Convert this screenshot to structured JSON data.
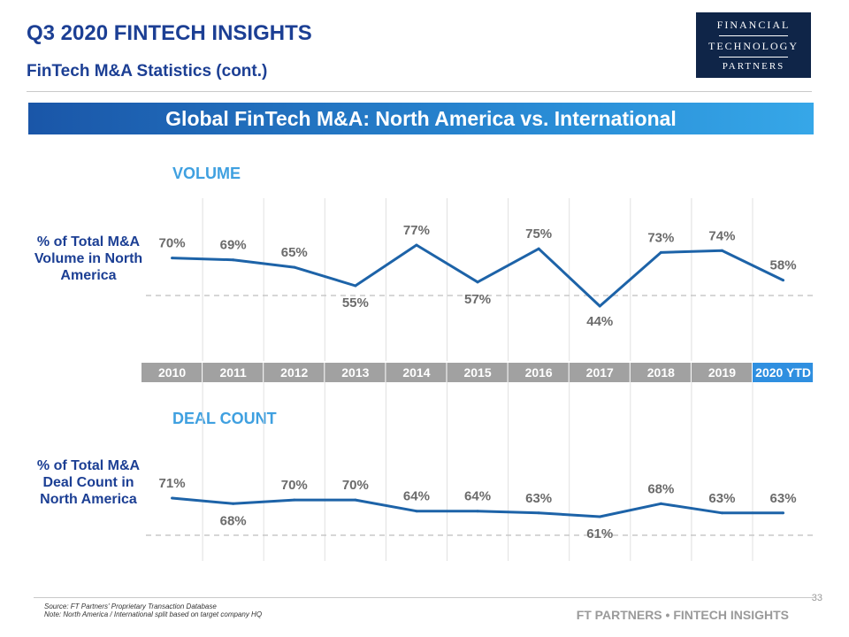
{
  "header": {
    "title": "Q3 2020 FINTECH INSIGHTS",
    "subtitle": "FinTech M&A Statistics (cont.)",
    "logo_lines": [
      "FINANCIAL",
      "TECHNOLOGY",
      "PARTNERS"
    ]
  },
  "banner": {
    "text": "Global FinTech M&A:  North America vs. International"
  },
  "chart_data": {
    "type": "line",
    "categories": [
      "2010",
      "2011",
      "2012",
      "2013",
      "2014",
      "2015",
      "2016",
      "2017",
      "2018",
      "2019",
      "2020 YTD"
    ],
    "series": [
      {
        "name": "% of Total M&A Volume in North America",
        "section": "VOLUME",
        "row_label": "% of Total M&A Volume in North America",
        "values": [
          70,
          69,
          65,
          55,
          77,
          57,
          75,
          44,
          73,
          74,
          58
        ],
        "labels": [
          "70%",
          "69%",
          "65%",
          "55%",
          "77%",
          "57%",
          "75%",
          "44%",
          "73%",
          "74%",
          "58%"
        ]
      },
      {
        "name": "% of Total M&A Deal Count in North America",
        "section": "DEAL COUNT",
        "row_label": "% of Total M&A Deal Count in North America",
        "values": [
          71,
          68,
          70,
          70,
          64,
          64,
          63,
          61,
          68,
          63,
          63
        ],
        "labels": [
          "71%",
          "68%",
          "70%",
          "70%",
          "64%",
          "64%",
          "63%",
          "61%",
          "68%",
          "63%",
          "63%"
        ]
      }
    ],
    "colors": {
      "line": "#1d63a8",
      "year_bar": "#a1a1a1",
      "year_highlight": "#2f8fe0",
      "section_label": "#3fa0e0",
      "row_label": "#1c3f94"
    }
  },
  "footer": {
    "source": "Source: FT Partners' Proprietary Transaction Database",
    "note": "Note: North America / International split based on target company HQ",
    "brand": "FT PARTNERS • FINTECH INSIGHTS",
    "page": "33"
  }
}
